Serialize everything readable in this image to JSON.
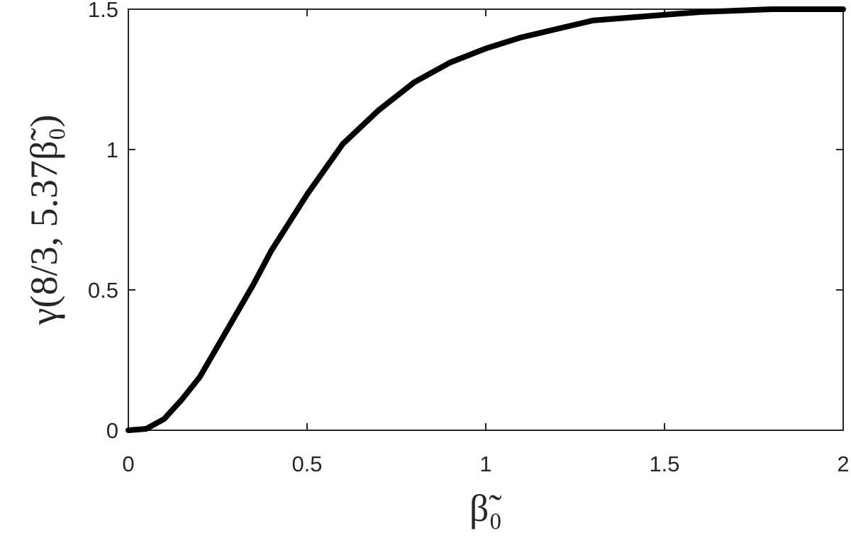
{
  "chart_data": {
    "type": "line",
    "x_label": "β̃₀",
    "y_label": "γ(8/3, 5.37β̃₀)",
    "x": [
      0,
      0.05,
      0.1,
      0.15,
      0.2,
      0.25,
      0.3,
      0.35,
      0.4,
      0.45,
      0.5,
      0.6,
      0.7,
      0.8,
      0.9,
      1.0,
      1.1,
      1.2,
      1.3,
      1.4,
      1.5,
      1.6,
      1.8,
      2.0
    ],
    "series": [
      {
        "color": "#000000",
        "values": [
          0,
          0.005,
          0.04,
          0.11,
          0.19,
          0.3,
          0.41,
          0.52,
          0.64,
          0.74,
          0.84,
          1.02,
          1.14,
          1.24,
          1.31,
          1.36,
          1.4,
          1.43,
          1.46,
          1.47,
          1.48,
          1.49,
          1.5,
          1.5
        ]
      }
    ],
    "xlim": [
      0,
      2
    ],
    "ylim": [
      0,
      1.5
    ],
    "xticks": [
      0,
      0.5,
      1,
      1.5,
      2
    ],
    "yticks": [
      0,
      0.5,
      1,
      1.5
    ],
    "grid": false
  }
}
